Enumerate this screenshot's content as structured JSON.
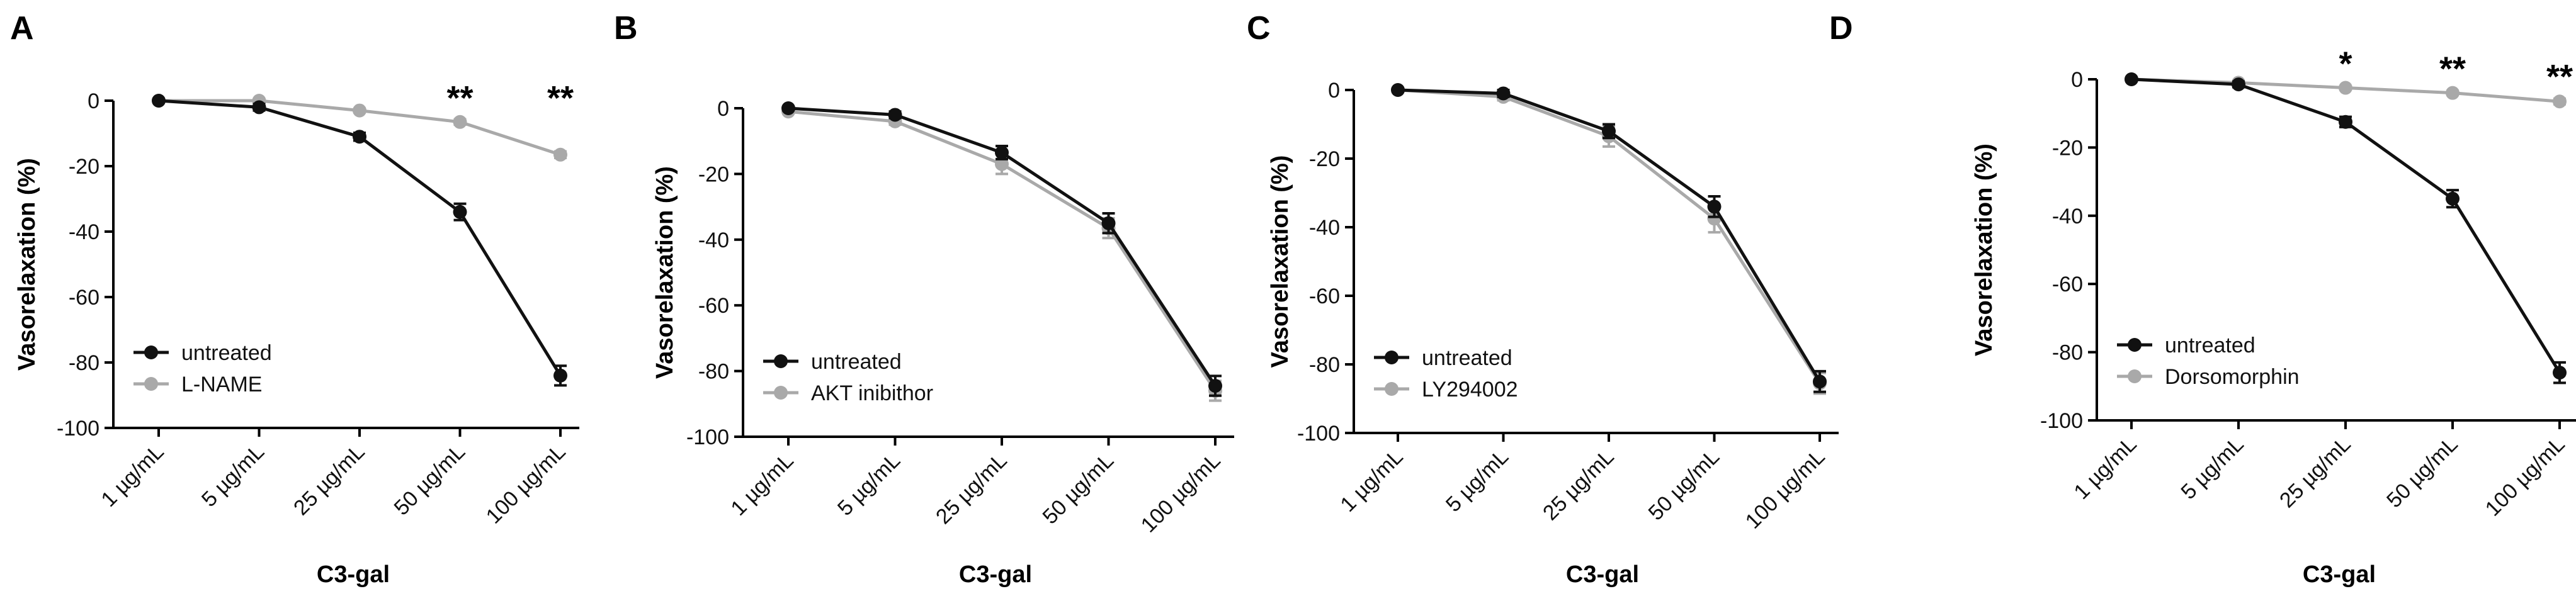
{
  "figure": {
    "colors": {
      "untreated": "#111111",
      "treated": "#a9a9a9",
      "axis": "#000000"
    }
  },
  "chart_data": [
    {
      "type": "line",
      "panel": "A",
      "title": "",
      "xlabel": "C3-gal",
      "ylabel": "Vasorelaxation (%)",
      "categories": [
        "1 µg/mL",
        "5 µg/mL",
        "25 µg/mL",
        "50 µg/mL",
        "100 µg/mL"
      ],
      "ylim": [
        -100,
        0
      ],
      "yticks": [
        "0",
        "-20",
        "-40",
        "-60",
        "-80",
        "-100"
      ],
      "series": [
        {
          "name": "untreated",
          "values": [
            0,
            -2,
            -11,
            -34,
            -84
          ],
          "errors": [
            0.5,
            1,
            1.2,
            2.5,
            3
          ]
        },
        {
          "name": "L-NAME",
          "values": [
            0,
            0,
            -3,
            -6.5,
            -16.5
          ],
          "errors": [
            0.3,
            0.5,
            0.6,
            0.8,
            1
          ]
        }
      ],
      "significance": [
        {
          "category_index": 3,
          "label": "**"
        },
        {
          "category_index": 4,
          "label": "**"
        }
      ],
      "legend": "bottom-left"
    },
    {
      "type": "line",
      "panel": "B",
      "title": "",
      "xlabel": "C3-gal",
      "ylabel": "Vasorelaxation (%)",
      "categories": [
        "1 µg/mL",
        "5 µg/mL",
        "25 µg/mL",
        "50 µg/mL",
        "100 µg/mL"
      ],
      "ylim": [
        -100,
        0
      ],
      "yticks": [
        "0",
        "-20",
        "-40",
        "-60",
        "-80",
        "-100"
      ],
      "series": [
        {
          "name": "untreated",
          "values": [
            0,
            -2,
            -13.5,
            -35,
            -84.5
          ],
          "errors": [
            0.5,
            1,
            2,
            3,
            3
          ]
        },
        {
          "name": "AKT inibithor",
          "values": [
            -1,
            -4,
            -17,
            -36.5,
            -86
          ],
          "errors": [
            0.5,
            1,
            3,
            3,
            3
          ]
        }
      ],
      "significance": [],
      "legend": "bottom-left"
    },
    {
      "type": "line",
      "panel": "C",
      "title": "",
      "xlabel": "C3-gal",
      "ylabel": "Vasorelaxation (%)",
      "categories": [
        "1 µg/mL",
        "5 µg/mL",
        "25 µg/mL",
        "50 µg/mL",
        "100 µg/mL"
      ],
      "ylim": [
        -100,
        0
      ],
      "yticks": [
        "0",
        "-20",
        "-40",
        "-60",
        "-80",
        "-100"
      ],
      "series": [
        {
          "name": "untreated",
          "values": [
            0,
            -1,
            -12,
            -34,
            -85
          ],
          "errors": [
            0.5,
            1,
            2,
            3,
            3
          ]
        },
        {
          "name": "LY294002",
          "values": [
            0,
            -2,
            -13.5,
            -37.5,
            -85.5
          ],
          "errors": [
            0.5,
            1,
            3,
            4,
            3
          ]
        }
      ],
      "significance": [],
      "legend": "bottom-left"
    },
    {
      "type": "line",
      "panel": "D",
      "title": "",
      "xlabel": "C3-gal",
      "ylabel": "Vasorelaxation (%)",
      "categories": [
        "1 µg/mL",
        "5 µg/mL",
        "25 µg/mL",
        "50 µg/mL",
        "100 µg/mL"
      ],
      "ylim": [
        -100,
        0
      ],
      "yticks": [
        "0",
        "-20",
        "-40",
        "-60",
        "-80",
        "-100"
      ],
      "series": [
        {
          "name": "untreated",
          "values": [
            0,
            -1.5,
            -12.5,
            -35,
            -86
          ],
          "errors": [
            0.5,
            0.8,
            1.5,
            2.5,
            3
          ]
        },
        {
          "name": "Dorsomorphin",
          "values": [
            0,
            -1,
            -2.5,
            -4,
            -6.5
          ],
          "errors": [
            0.3,
            0.4,
            0.5,
            0.6,
            0.8
          ]
        }
      ],
      "significance": [
        {
          "category_index": 2,
          "label": "*"
        },
        {
          "category_index": 3,
          "label": "**"
        },
        {
          "category_index": 4,
          "label": "**"
        }
      ],
      "legend": "bottom-left"
    }
  ]
}
